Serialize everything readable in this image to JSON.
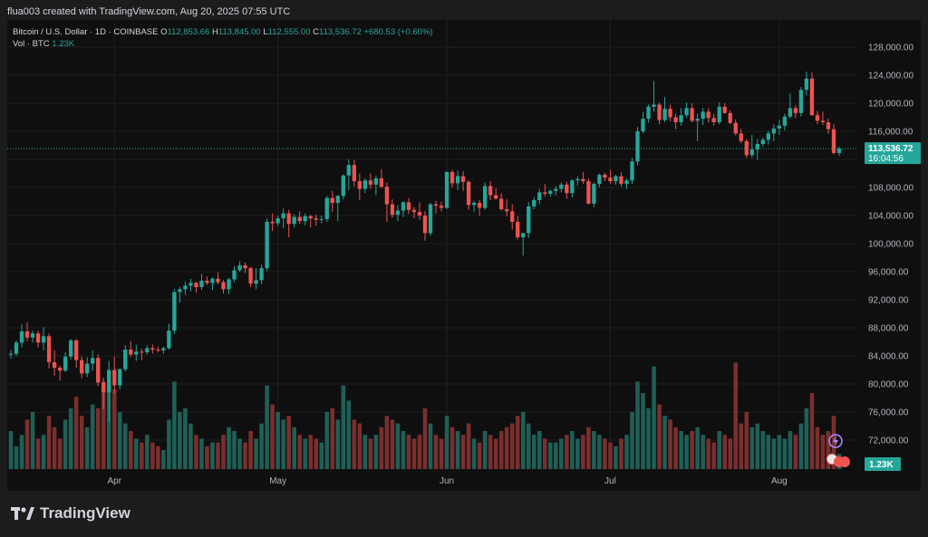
{
  "header": {
    "text": "flua003 created with TradingView.com, Aug 20, 2025 07:55 UTC"
  },
  "legend": {
    "symbol": "Bitcoin / U.S. Dollar · 1D · COINBASE",
    "o_label": "O",
    "o_value": "112,853.66",
    "h_label": "H",
    "h_value": "113,845.00",
    "l_label": "L",
    "l_value": "112,555.00",
    "c_label": "C",
    "c_value": "113,536.72",
    "change": "+680.53 (+0.60%)",
    "vol_label": "Vol · BTC",
    "vol_value": "1.23K"
  },
  "price_badge": {
    "price": "113,536.72",
    "countdown": "16:04:56"
  },
  "volume_badge": "1.23K",
  "footer": {
    "brand": "TradingView"
  },
  "colors": {
    "up": "#26a69a",
    "down": "#ef5350",
    "vol_up": "#1f5f56",
    "vol_down": "#7a2f2e",
    "bg": "#0f0f0f",
    "grid": "#1f1f1f"
  },
  "chart_data": {
    "type": "candlestick",
    "y_ticks": [
      "72,000.00",
      "76,000.00",
      "80,000.00",
      "84,000.00",
      "88,000.00",
      "92,000.00",
      "96,000.00",
      "100,000.00",
      "104,000.00",
      "108,000.00",
      "112,000.00",
      "116,000.00",
      "120,000.00",
      "124,000.00",
      "128,000.00"
    ],
    "y_tick_values": [
      72000,
      76000,
      80000,
      84000,
      88000,
      92000,
      96000,
      100000,
      104000,
      108000,
      112000,
      116000,
      120000,
      124000,
      128000
    ],
    "ylim": [
      70000,
      130000
    ],
    "x_labels": [
      {
        "label": "Apr",
        "index": 19
      },
      {
        "label": "May",
        "index": 49
      },
      {
        "label": "Jun",
        "index": 80
      },
      {
        "label": "Jul",
        "index": 110
      },
      {
        "label": "Aug",
        "index": 141
      }
    ],
    "last_price": 113536.72,
    "candles": [
      [
        84200,
        84800,
        83600,
        84300,
        1.0
      ],
      [
        84300,
        86200,
        84000,
        85900,
        0.6
      ],
      [
        85900,
        88500,
        85200,
        87500,
        0.9
      ],
      [
        87500,
        88800,
        86100,
        86600,
        1.3
      ],
      [
        86600,
        87600,
        85900,
        87200,
        1.5
      ],
      [
        87200,
        87600,
        85200,
        85900,
        0.8
      ],
      [
        85900,
        88100,
        84800,
        86800,
        0.9
      ],
      [
        86800,
        87200,
        82200,
        83100,
        1.4
      ],
      [
        83100,
        84800,
        81200,
        82300,
        1.1
      ],
      [
        82300,
        82600,
        80500,
        81900,
        0.8
      ],
      [
        81900,
        84500,
        81700,
        83900,
        1.3
      ],
      [
        83900,
        86400,
        83500,
        86200,
        1.6
      ],
      [
        86200,
        86400,
        82300,
        83400,
        1.9
      ],
      [
        83400,
        83900,
        80800,
        81500,
        1.4
      ],
      [
        81500,
        83800,
        81000,
        82900,
        1.1
      ],
      [
        82900,
        84800,
        81900,
        83700,
        1.7
      ],
      [
        83700,
        84200,
        79700,
        80200,
        1.6
      ],
      [
        80200,
        80900,
        76400,
        78800,
        2.3
      ],
      [
        78800,
        83300,
        74600,
        82000,
        2.5
      ],
      [
        82000,
        83900,
        78700,
        79800,
        2.1
      ],
      [
        79800,
        82200,
        79200,
        82100,
        1.5
      ],
      [
        82100,
        85500,
        81800,
        84900,
        1.2
      ],
      [
        84900,
        86100,
        83900,
        84200,
        1.0
      ],
      [
        84200,
        85600,
        83300,
        84600,
        0.8
      ],
      [
        84600,
        85000,
        83400,
        84500,
        0.7
      ],
      [
        84500,
        85500,
        84200,
        85100,
        0.9
      ],
      [
        85100,
        85600,
        84300,
        84900,
        0.7
      ],
      [
        84900,
        85300,
        84500,
        84800,
        0.6
      ],
      [
        84800,
        85300,
        84300,
        85100,
        0.5
      ],
      [
        85100,
        88600,
        84900,
        87600,
        1.3
      ],
      [
        87600,
        93500,
        87100,
        93100,
        2.3
      ],
      [
        93100,
        93800,
        91600,
        93500,
        1.5
      ],
      [
        93500,
        94600,
        92700,
        94000,
        1.6
      ],
      [
        94000,
        95000,
        93200,
        94400,
        1.2
      ],
      [
        94400,
        94600,
        93000,
        93800,
        0.9
      ],
      [
        93800,
        95700,
        93400,
        94700,
        0.8
      ],
      [
        94700,
        95300,
        94100,
        94400,
        0.6
      ],
      [
        94400,
        95200,
        93400,
        95000,
        0.7
      ],
      [
        95000,
        95900,
        94200,
        94500,
        0.7
      ],
      [
        94500,
        94800,
        92900,
        93500,
        0.9
      ],
      [
        93500,
        95100,
        92800,
        94900,
        1.1
      ],
      [
        94900,
        96800,
        94500,
        96200,
        1.0
      ],
      [
        96200,
        97500,
        96000,
        96900,
        0.8
      ],
      [
        96900,
        97300,
        95800,
        96500,
        0.7
      ],
      [
        96500,
        96700,
        93800,
        94300,
        1.0
      ],
      [
        94300,
        96500,
        93500,
        94800,
        0.8
      ],
      [
        94800,
        97000,
        94200,
        96500,
        1.2
      ],
      [
        96500,
        103600,
        96100,
        103100,
        2.2
      ],
      [
        103100,
        104300,
        101800,
        102900,
        1.7
      ],
      [
        102900,
        104000,
        102500,
        103600,
        1.5
      ],
      [
        103600,
        105000,
        102200,
        104300,
        1.3
      ],
      [
        104300,
        104800,
        100900,
        102800,
        1.4
      ],
      [
        102800,
        104200,
        102300,
        103800,
        1.1
      ],
      [
        103800,
        104600,
        102800,
        103200,
        0.9
      ],
      [
        103200,
        104300,
        102600,
        103900,
        0.8
      ],
      [
        103900,
        104100,
        102300,
        103600,
        0.9
      ],
      [
        103600,
        104100,
        102500,
        103400,
        0.8
      ],
      [
        103400,
        104000,
        102900,
        103500,
        0.7
      ],
      [
        103500,
        106800,
        103100,
        106500,
        1.5
      ],
      [
        106500,
        107500,
        104500,
        105800,
        1.6
      ],
      [
        105800,
        106900,
        103200,
        106800,
        1.3
      ],
      [
        106800,
        109900,
        106300,
        109700,
        2.2
      ],
      [
        109700,
        112000,
        107600,
        111200,
        1.8
      ],
      [
        111200,
        111900,
        108100,
        108900,
        1.3
      ],
      [
        108900,
        110000,
        106200,
        107800,
        1.2
      ],
      [
        107800,
        109300,
        107200,
        109000,
        0.9
      ],
      [
        109000,
        110000,
        107800,
        108400,
        0.8
      ],
      [
        108400,
        109700,
        106900,
        109300,
        0.9
      ],
      [
        109300,
        110600,
        107900,
        108100,
        1.1
      ],
      [
        108100,
        108700,
        103100,
        105600,
        1.4
      ],
      [
        105600,
        106300,
        103700,
        104100,
        1.3
      ],
      [
        104100,
        105500,
        103200,
        104700,
        1.2
      ],
      [
        104700,
        106000,
        103800,
        105900,
        1.0
      ],
      [
        105900,
        106500,
        104200,
        104800,
        0.9
      ],
      [
        104800,
        105200,
        103600,
        104500,
        0.8
      ],
      [
        104500,
        105900,
        103400,
        104000,
        0.9
      ],
      [
        104000,
        104600,
        100400,
        101500,
        1.6
      ],
      [
        101500,
        105800,
        101100,
        105600,
        1.2
      ],
      [
        105600,
        106100,
        104300,
        105400,
        0.9
      ],
      [
        105400,
        106000,
        104600,
        105100,
        0.8
      ],
      [
        105100,
        110300,
        104900,
        110200,
        1.4
      ],
      [
        110200,
        110500,
        108000,
        108600,
        1.1
      ],
      [
        108600,
        110400,
        107600,
        109600,
        1.0
      ],
      [
        109600,
        110300,
        107500,
        108800,
        0.9
      ],
      [
        108800,
        109000,
        104800,
        105500,
        1.2
      ],
      [
        105500,
        106100,
        104500,
        105800,
        0.8
      ],
      [
        105800,
        106200,
        104000,
        105100,
        0.7
      ],
      [
        105100,
        108700,
        104800,
        108200,
        1.0
      ],
      [
        108200,
        108900,
        106200,
        106900,
        0.9
      ],
      [
        106900,
        107900,
        106300,
        106400,
        0.8
      ],
      [
        106400,
        107200,
        104700,
        104900,
        1.0
      ],
      [
        104900,
        106300,
        103900,
        104600,
        1.1
      ],
      [
        104600,
        105600,
        102000,
        103100,
        1.2
      ],
      [
        103100,
        103900,
        100600,
        100900,
        1.4
      ],
      [
        100900,
        101500,
        98300,
        101500,
        1.5
      ],
      [
        101500,
        105900,
        100800,
        105300,
        1.2
      ],
      [
        105300,
        106600,
        104900,
        106200,
        0.9
      ],
      [
        106200,
        107800,
        105600,
        107300,
        1.0
      ],
      [
        107300,
        108500,
        106700,
        107100,
        0.8
      ],
      [
        107100,
        107700,
        106700,
        107500,
        0.7
      ],
      [
        107500,
        108200,
        106900,
        107800,
        0.7
      ],
      [
        107800,
        108700,
        107300,
        108400,
        0.8
      ],
      [
        108400,
        108800,
        106400,
        107200,
        0.9
      ],
      [
        107200,
        109200,
        106600,
        109000,
        1.0
      ],
      [
        109000,
        109600,
        108300,
        109200,
        0.8
      ],
      [
        109200,
        110200,
        108500,
        108900,
        0.9
      ],
      [
        108900,
        109300,
        105600,
        105700,
        1.1
      ],
      [
        105700,
        108700,
        105200,
        108500,
        1.0
      ],
      [
        108500,
        110000,
        108000,
        109800,
        0.9
      ],
      [
        109800,
        110100,
        108900,
        109400,
        0.8
      ],
      [
        109400,
        110500,
        108600,
        108900,
        0.7
      ],
      [
        108900,
        109800,
        108400,
        109600,
        0.6
      ],
      [
        109600,
        110200,
        108100,
        108500,
        0.8
      ],
      [
        108500,
        109300,
        107800,
        109000,
        0.9
      ],
      [
        109000,
        112200,
        108500,
        111700,
        1.5
      ],
      [
        111700,
        116600,
        111200,
        116000,
        2.3
      ],
      [
        116000,
        118800,
        115700,
        117800,
        2.0
      ],
      [
        117800,
        119800,
        117200,
        119500,
        1.6
      ],
      [
        119500,
        123200,
        118800,
        119800,
        2.7
      ],
      [
        119800,
        120100,
        117000,
        117600,
        1.7
      ],
      [
        117600,
        120900,
        117300,
        119200,
        1.4
      ],
      [
        119200,
        119800,
        117400,
        118000,
        1.3
      ],
      [
        118000,
        118500,
        116300,
        117300,
        1.1
      ],
      [
        117300,
        119300,
        116800,
        118300,
        1.0
      ],
      [
        118300,
        120100,
        117900,
        119300,
        0.9
      ],
      [
        119300,
        120000,
        117300,
        117500,
        1.0
      ],
      [
        117500,
        118500,
        114600,
        117800,
        1.1
      ],
      [
        117800,
        119300,
        116900,
        118800,
        0.9
      ],
      [
        118800,
        119300,
        117200,
        117900,
        0.8
      ],
      [
        117900,
        118500,
        116800,
        117300,
        0.7
      ],
      [
        117300,
        120100,
        117000,
        119500,
        1.0
      ],
      [
        119500,
        120000,
        118500,
        118600,
        0.9
      ],
      [
        118600,
        119000,
        117000,
        117200,
        0.8
      ],
      [
        117200,
        117700,
        115400,
        115700,
        2.8
      ],
      [
        115700,
        116400,
        114300,
        114600,
        1.2
      ],
      [
        114600,
        114900,
        112200,
        112600,
        1.5
      ],
      [
        112600,
        115500,
        112200,
        113400,
        1.1
      ],
      [
        113400,
        114900,
        111900,
        114200,
        1.2
      ],
      [
        114200,
        115100,
        113800,
        114800,
        1.0
      ],
      [
        114800,
        116100,
        114100,
        115700,
        0.9
      ],
      [
        115700,
        117000,
        114600,
        116400,
        0.8
      ],
      [
        116400,
        117600,
        115500,
        116800,
        0.9
      ],
      [
        116800,
        118500,
        116100,
        118100,
        0.8
      ],
      [
        118100,
        121400,
        117800,
        119300,
        1.0
      ],
      [
        119300,
        119700,
        117900,
        118600,
        0.9
      ],
      [
        118600,
        122300,
        118100,
        121900,
        1.2
      ],
      [
        121900,
        124500,
        121100,
        123500,
        1.6
      ],
      [
        123500,
        124400,
        118200,
        118300,
        2.0
      ],
      [
        118300,
        118900,
        117000,
        117500,
        1.1
      ],
      [
        117500,
        118800,
        116900,
        117300,
        0.9
      ],
      [
        117300,
        117800,
        115600,
        116300,
        1.0
      ],
      [
        116300,
        117000,
        112700,
        112900,
        1.4
      ],
      [
        112900,
        113800,
        112500,
        113537,
        0.4
      ]
    ]
  }
}
